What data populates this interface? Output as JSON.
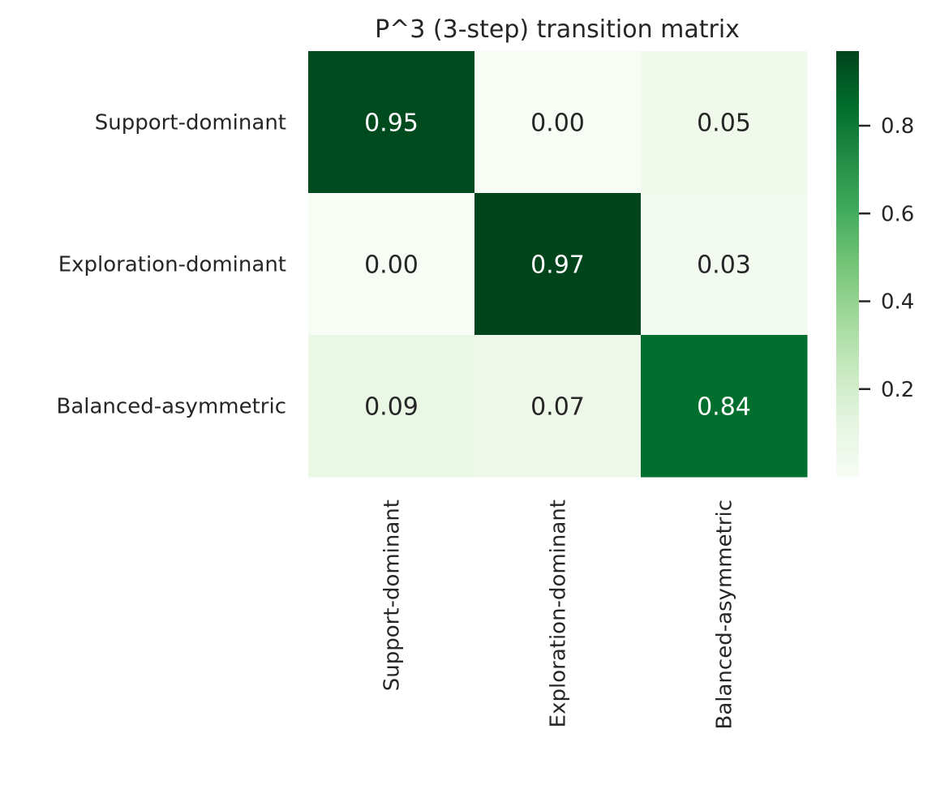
{
  "chart_data": {
    "type": "heatmap",
    "title": "P^3 (3-step) transition matrix",
    "row_labels": [
      "Support-dominant",
      "Exploration-dominant",
      "Balanced-asymmetric"
    ],
    "col_labels": [
      "Support-dominant",
      "Exploration-dominant",
      "Balanced-asymmetric"
    ],
    "values": [
      [
        0.95,
        0.0,
        0.05
      ],
      [
        0.0,
        0.97,
        0.03
      ],
      [
        0.09,
        0.07,
        0.84
      ]
    ],
    "annotations": [
      [
        "0.95",
        "0.00",
        "0.05"
      ],
      [
        "0.00",
        "0.97",
        "0.03"
      ],
      [
        "0.09",
        "0.07",
        "0.84"
      ]
    ],
    "colormap": "Greens",
    "colorbar": {
      "range": [
        0.0,
        0.97
      ],
      "ticks": [
        0.2,
        0.4,
        0.6,
        0.8
      ],
      "tick_labels": [
        "0.2",
        "0.4",
        "0.6",
        "0.8"
      ]
    },
    "grid": false
  }
}
